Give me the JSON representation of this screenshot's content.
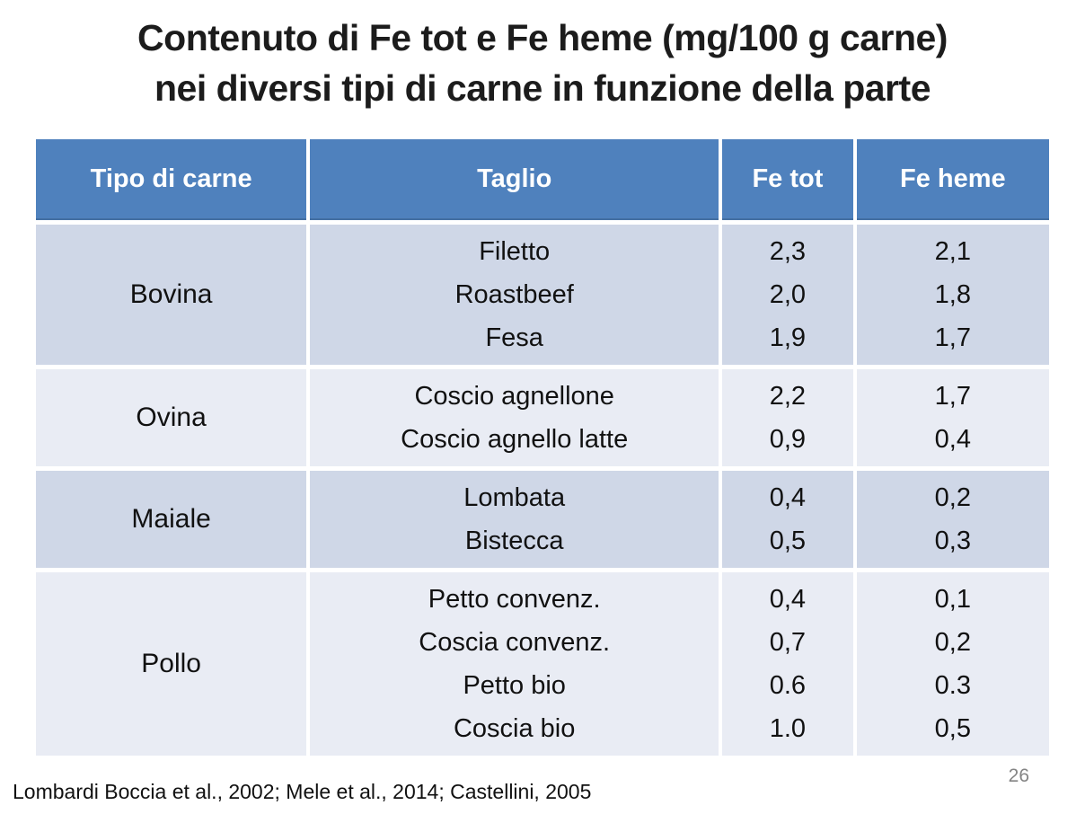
{
  "slide": {
    "title_line1": "Contenuto di Fe tot e Fe heme (mg/100 g carne)",
    "title_line2": "nei diversi tipi di carne in funzione della parte",
    "footer": "Lombardi Boccia et al., 2002; Mele et al., 2014; Castellini, 2005",
    "page_number": "26"
  },
  "table": {
    "headers": [
      "Tipo di carne",
      "Taglio",
      "Fe tot",
      "Fe heme"
    ],
    "unit": "mg/100 g carne",
    "colors": {
      "header_bg": "#4F81BD",
      "header_text": "#FFFFFF",
      "band_dark_bg": "#CFD7E7",
      "band_light_bg": "#E9ECF4",
      "body_text": "#111111"
    },
    "groups": [
      {
        "tipo": "Bovina",
        "rows": [
          {
            "taglio": "Filetto",
            "fe_tot": "2,3",
            "fe_heme": "2,1"
          },
          {
            "taglio": "Roastbeef",
            "fe_tot": "2,0",
            "fe_heme": "1,8"
          },
          {
            "taglio": "Fesa",
            "fe_tot": "1,9",
            "fe_heme": "1,7"
          }
        ]
      },
      {
        "tipo": "Ovina",
        "rows": [
          {
            "taglio": "Coscio agnellone",
            "fe_tot": "2,2",
            "fe_heme": "1,7"
          },
          {
            "taglio": "Coscio agnello latte",
            "fe_tot": "0,9",
            "fe_heme": "0,4"
          }
        ]
      },
      {
        "tipo": "Maiale",
        "rows": [
          {
            "taglio": "Lombata",
            "fe_tot": "0,4",
            "fe_heme": "0,2"
          },
          {
            "taglio": "Bistecca",
            "fe_tot": "0,5",
            "fe_heme": "0,3"
          }
        ]
      },
      {
        "tipo": "Pollo",
        "rows": [
          {
            "taglio": "Petto convenz.",
            "fe_tot": "0,4",
            "fe_heme": "0,1"
          },
          {
            "taglio": "Coscia convenz.",
            "fe_tot": "0,7",
            "fe_heme": "0,2"
          },
          {
            "taglio": "Petto bio",
            "fe_tot": "0.6",
            "fe_heme": "0.3"
          },
          {
            "taglio": "Coscia bio",
            "fe_tot": "1.0",
            "fe_heme": "0,5"
          }
        ]
      }
    ]
  },
  "chart_data": {
    "type": "table",
    "title": "Contenuto di Fe tot e Fe heme (mg/100 g carne) nei diversi tipi di carne in funzione della parte",
    "columns": [
      "Tipo di carne",
      "Taglio",
      "Fe tot",
      "Fe heme"
    ],
    "rows": [
      [
        "Bovina",
        "Filetto",
        "2,3",
        "2,1"
      ],
      [
        "Bovina",
        "Roastbeef",
        "2,0",
        "1,8"
      ],
      [
        "Bovina",
        "Fesa",
        "1,9",
        "1,7"
      ],
      [
        "Ovina",
        "Coscio agnellone",
        "2,2",
        "1,7"
      ],
      [
        "Ovina",
        "Coscio agnello latte",
        "0,9",
        "0,4"
      ],
      [
        "Maiale",
        "Lombata",
        "0,4",
        "0,2"
      ],
      [
        "Maiale",
        "Bistecca",
        "0,5",
        "0,3"
      ],
      [
        "Pollo",
        "Petto convenz.",
        "0,4",
        "0,1"
      ],
      [
        "Pollo",
        "Coscia convenz.",
        "0,7",
        "0,2"
      ],
      [
        "Pollo",
        "Petto bio",
        "0.6",
        "0.3"
      ],
      [
        "Pollo",
        "Coscia bio",
        "1.0",
        "0,5"
      ]
    ]
  }
}
